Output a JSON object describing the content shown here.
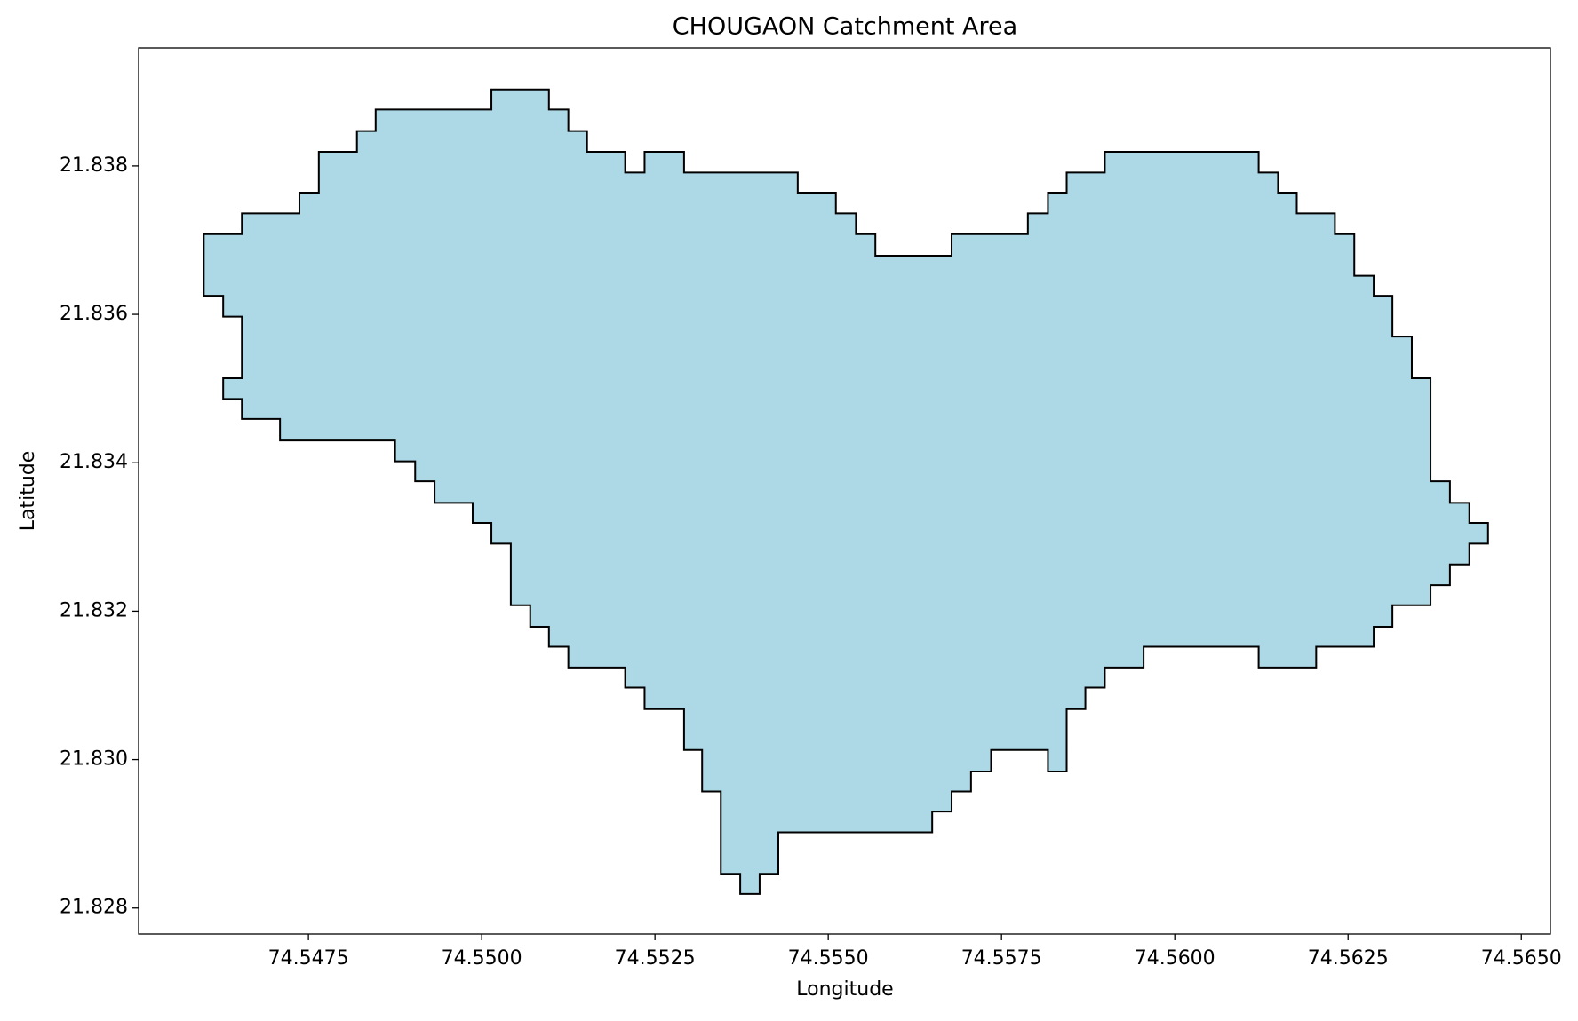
{
  "chart_data": {
    "type": "polygon",
    "title": "CHOUGAON Catchment Area",
    "x_label": "Longitude",
    "y_label": "Latitude",
    "fill_color": "#add8e6",
    "edge_color": "#000000",
    "grid": false,
    "xlim": [
      74.54505,
      74.56542
    ],
    "ylim": [
      21.82765,
      21.83959
    ],
    "xticks": [
      74.5475,
      {
        "value": 74.55,
        "label": "74.5500"
      },
      74.5525,
      {
        "value": 74.555,
        "label": "74.5550"
      },
      74.5575,
      {
        "value": 74.56,
        "label": "74.5600"
      },
      74.5625,
      {
        "value": 74.565,
        "label": "74.5650"
      }
    ],
    "yticks": [
      21.828,
      {
        "value": 21.83,
        "label": "21.830"
      },
      21.832,
      21.834,
      21.836,
      21.838
    ],
    "x": [
      74.54599,
      74.54654,
      74.54654,
      74.54737,
      74.54737,
      74.54765,
      74.54765,
      74.5482,
      74.5482,
      74.54847,
      74.54847,
      74.55014,
      74.55014,
      74.55097,
      74.55097,
      74.55125,
      74.55125,
      74.55152,
      74.55152,
      74.55207,
      74.55207,
      74.55235,
      74.55235,
      74.55292,
      74.55292,
      74.55456,
      74.55456,
      74.55511,
      74.55511,
      74.5554,
      74.5554,
      74.55568,
      74.55568,
      74.55678,
      74.55678,
      74.55788,
      74.55788,
      74.55817,
      74.55817,
      74.55844,
      74.55844,
      74.55899,
      74.55899,
      74.56121,
      74.56121,
      74.56149,
      74.56149,
      74.56176,
      74.56176,
      74.56231,
      74.56231,
      74.56259,
      74.56259,
      74.56287,
      74.56287,
      74.56314,
      74.56314,
      74.56342,
      74.56342,
      74.56369,
      74.56369,
      74.56397,
      74.56397,
      74.56425,
      74.56425,
      74.56452,
      74.56452,
      74.56425,
      74.56425,
      74.56397,
      74.56397,
      74.56369,
      74.56369,
      74.56314,
      74.56314,
      74.56287,
      74.56287,
      74.56204,
      74.56204,
      74.56121,
      74.56121,
      74.55955,
      74.55955,
      74.55899,
      74.55899,
      74.55871,
      74.55871,
      74.55844,
      74.55844,
      74.55817,
      74.55817,
      74.55735,
      74.55735,
      74.55706,
      74.55706,
      74.55678,
      74.55678,
      74.5565,
      74.5565,
      74.55428,
      74.55428,
      74.55401,
      74.55401,
      74.55373,
      74.55373,
      74.55345,
      74.55345,
      74.55318,
      74.55318,
      74.55292,
      74.55292,
      74.55235,
      74.55235,
      74.55207,
      74.55207,
      74.55125,
      74.55125,
      74.55097,
      74.55097,
      74.5507,
      74.5507,
      74.55042,
      74.55042,
      74.55014,
      74.55014,
      74.54987,
      74.54987,
      74.54932,
      74.54932,
      74.54904,
      74.54904,
      74.54875,
      74.54875,
      74.54709,
      74.54709,
      74.54654,
      74.54654,
      74.54627,
      74.54627,
      74.54654,
      74.54654,
      74.54627,
      74.54627,
      74.54599
    ],
    "y": [
      21.83708,
      21.83708,
      21.83736,
      21.83736,
      21.83764,
      21.83764,
      21.83819,
      21.83819,
      21.83847,
      21.83847,
      21.83876,
      21.83876,
      21.83903,
      21.83903,
      21.83876,
      21.83876,
      21.83847,
      21.83847,
      21.83819,
      21.83819,
      21.83791,
      21.83791,
      21.83819,
      21.83819,
      21.83791,
      21.83791,
      21.83764,
      21.83764,
      21.83736,
      21.83736,
      21.83708,
      21.83708,
      21.83679,
      21.83679,
      21.83708,
      21.83708,
      21.83736,
      21.83736,
      21.83764,
      21.83764,
      21.83791,
      21.83791,
      21.83819,
      21.83819,
      21.83791,
      21.83791,
      21.83764,
      21.83764,
      21.83736,
      21.83736,
      21.83708,
      21.83708,
      21.83652,
      21.83652,
      21.83625,
      21.83625,
      21.8357,
      21.8357,
      21.83514,
      21.83514,
      21.83375,
      21.83375,
      21.83346,
      21.83346,
      21.83319,
      21.83319,
      21.83291,
      21.83291,
      21.83263,
      21.83263,
      21.83235,
      21.83235,
      21.83208,
      21.83208,
      21.83179,
      21.83179,
      21.83152,
      21.83152,
      21.83124,
      21.83124,
      21.83152,
      21.83152,
      21.83124,
      21.83124,
      21.83097,
      21.83097,
      21.83068,
      21.83068,
      21.82984,
      21.82984,
      21.83013,
      21.83013,
      21.82984,
      21.82984,
      21.82957,
      21.82957,
      21.8293,
      21.8293,
      21.82902,
      21.82902,
      21.82846,
      21.82846,
      21.82819,
      21.82819,
      21.82846,
      21.82846,
      21.82957,
      21.82957,
      21.83013,
      21.83013,
      21.83068,
      21.83068,
      21.83097,
      21.83097,
      21.83124,
      21.83124,
      21.83152,
      21.83152,
      21.83179,
      21.83179,
      21.83208,
      21.83208,
      21.83291,
      21.83291,
      21.83319,
      21.83319,
      21.83346,
      21.83346,
      21.83375,
      21.83375,
      21.83402,
      21.83402,
      21.8343,
      21.8343,
      21.83459,
      21.83459,
      21.83486,
      21.83486,
      21.83514,
      21.83514,
      21.83597,
      21.83597,
      21.83625,
      21.83625
    ]
  }
}
